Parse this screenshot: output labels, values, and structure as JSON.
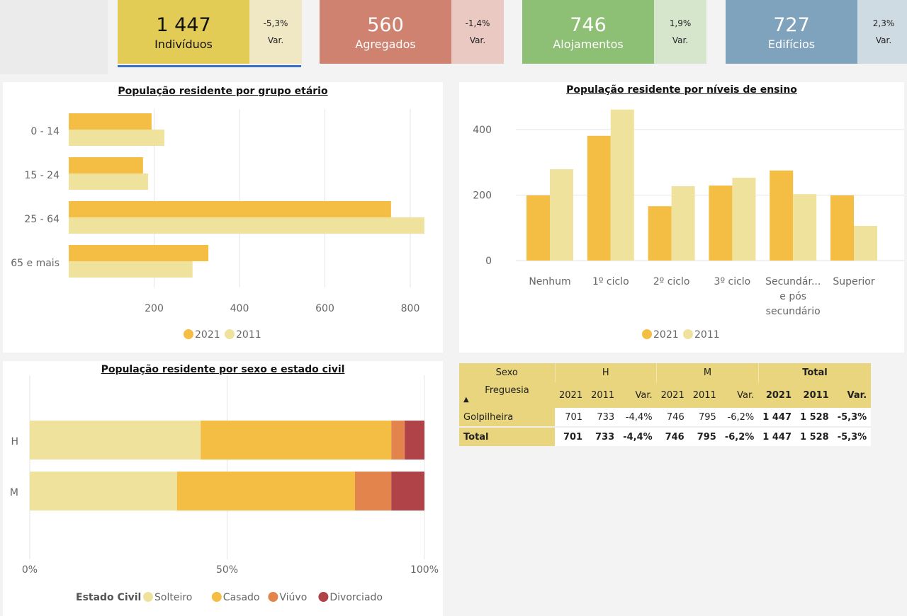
{
  "kpis": [
    {
      "value": "1 447",
      "label": "Indivíduos",
      "var": "-5,3%",
      "var_label": "Var.",
      "color": "#E2CC55",
      "light": "#F0E7C4",
      "dark_text": true
    },
    {
      "value": "560",
      "label": "Agregados",
      "var": "-1,4%",
      "var_label": "Var.",
      "color": "#D08270",
      "light": "#E9C9C1"
    },
    {
      "value": "746",
      "label": "Alojamentos",
      "var": "1,9%",
      "var_label": "Var.",
      "color": "#8DBF75",
      "light": "#D5E6CC"
    },
    {
      "value": "727",
      "label": "Edifícios",
      "var": "2,3%",
      "var_label": "Var.",
      "color": "#7FA2BD",
      "light": "#CFDBE3"
    }
  ],
  "chart_data": [
    {
      "type": "bar",
      "orientation": "horizontal",
      "title": "População residente por grupo etário",
      "categories": [
        "0 - 14",
        "15 - 24",
        "25 - 64",
        "65 e mais"
      ],
      "series": [
        {
          "name": "2021",
          "values": [
            194,
            174,
            755,
            327
          ],
          "color": "#F4BE45"
        },
        {
          "name": "2011",
          "values": [
            224,
            186,
            833,
            290
          ],
          "color": "#EFE29C"
        }
      ],
      "xticks": [
        200,
        400,
        600,
        800
      ],
      "xlim": [
        0,
        830
      ],
      "grid": true,
      "legend": "bottom"
    },
    {
      "type": "bar",
      "title": "População residente por níveis de ensino",
      "categories": [
        [
          "Nenhum"
        ],
        [
          "1º ciclo"
        ],
        [
          "2º ciclo"
        ],
        [
          "3º ciclo"
        ],
        [
          "Secundár...",
          "e pós",
          "secundário"
        ],
        [
          "Superior"
        ]
      ],
      "series": [
        {
          "name": "2021",
          "values": [
            199,
            381,
            166,
            229,
            275,
            199
          ],
          "color": "#F4BE45"
        },
        {
          "name": "2011",
          "values": [
            279,
            461,
            227,
            253,
            203,
            106
          ],
          "color": "#EFE29C"
        }
      ],
      "yticks": [
        0,
        200,
        400
      ],
      "ylim": [
        0,
        470
      ],
      "grid": true,
      "legend": "bottom"
    },
    {
      "type": "bar",
      "orientation": "horizontal",
      "stacked": "percent",
      "title": "População residente por sexo e estado civil",
      "categories": [
        "H",
        "M"
      ],
      "legend_title": "Estado Civil",
      "series": [
        {
          "name": "Solteiro",
          "values": [
            43.3,
            37.3
          ],
          "color": "#EFE29C"
        },
        {
          "name": "Casado",
          "values": [
            48.3,
            45.1
          ],
          "color": "#F4BE45"
        },
        {
          "name": "Viúvo",
          "values": [
            3.4,
            9.2
          ],
          "color": "#E3844C"
        },
        {
          "name": "Divorciado",
          "values": [
            5.0,
            8.4
          ],
          "color": "#B04347"
        }
      ],
      "xticks": [
        "0%",
        "50%",
        "100%"
      ],
      "grid": true,
      "legend": "bottom"
    }
  ],
  "table": {
    "sexo": "Sexo",
    "groups": [
      "H",
      "M",
      "Total"
    ],
    "freguesia": "Freguesia",
    "sort": "▲",
    "cols": [
      "2021",
      "2011",
      "Var.",
      "2021",
      "2011",
      "Var.",
      "2021",
      "2011",
      "Var."
    ],
    "rows": [
      {
        "label": "Golpilheira",
        "values": [
          "701",
          "733",
          "-4,4%",
          "746",
          "795",
          "-6,2%",
          "1 447",
          "1 528",
          "-5,3%"
        ]
      },
      {
        "label": "Total",
        "values": [
          "701",
          "733",
          "-4,4%",
          "746",
          "795",
          "-6,2%",
          "1 447",
          "1 528",
          "-5,3%"
        ]
      }
    ]
  }
}
